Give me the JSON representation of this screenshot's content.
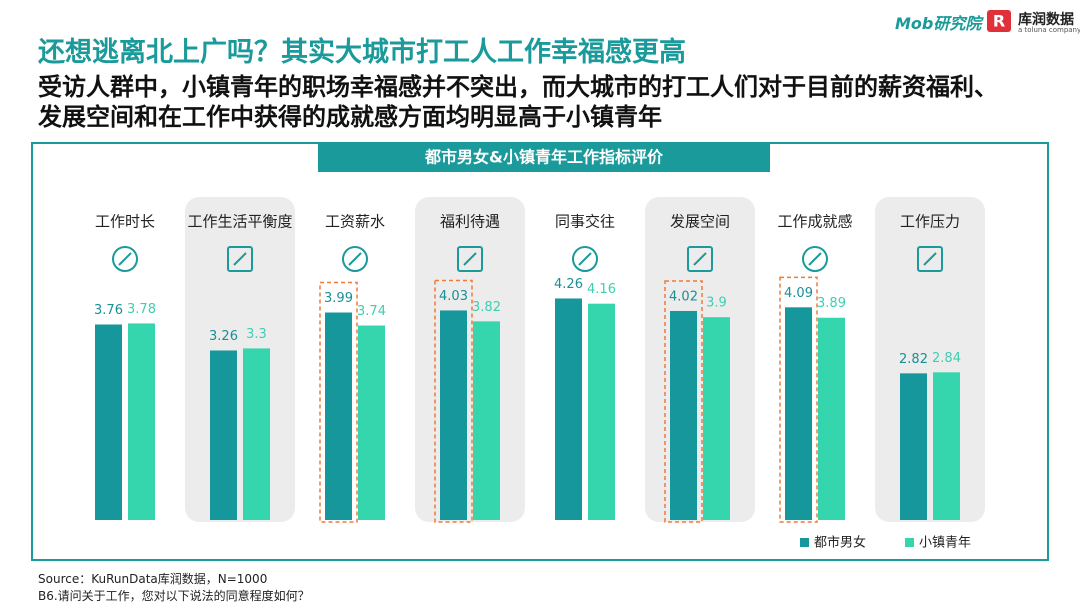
{
  "chart_data": {
    "type": "bar",
    "title": "还想逃离北上广吗？其实大城市打工人工作幸福感更高",
    "subtitle": "受访人群中，小镇青年的职场幸福感并不突出，而大城市的打工人们对于目前的薪资福利、发展空间和在工作中获得的成就感方面均明显高于小镇青年",
    "chart_title": "都市男女&小镇青年工作指标评价",
    "categories": [
      "工作时长",
      "工作生活平衡度",
      "工资薪水",
      "福利待遇",
      "同事交往",
      "发展空间",
      "工作成就感",
      "工作压力"
    ],
    "series": [
      {
        "name": "都市男女",
        "color": "#16979b",
        "values": [
          3.76,
          3.26,
          3.99,
          4.03,
          4.26,
          4.02,
          4.09,
          2.82
        ]
      },
      {
        "name": "小镇青年",
        "color": "#35d6ad",
        "values": [
          3.78,
          3.3,
          3.74,
          3.82,
          4.16,
          3.9,
          3.89,
          2.84
        ]
      }
    ],
    "legend": "bottom-right",
    "source": "Source：KuRunData库润数据，N=1000",
    "note": "B6.请问关于工作，您对以下说法的同意程度如何？",
    "brand": "Mob研究院",
    "partner": "库润数据",
    "partner_tagline": "a toluna company"
  }
}
